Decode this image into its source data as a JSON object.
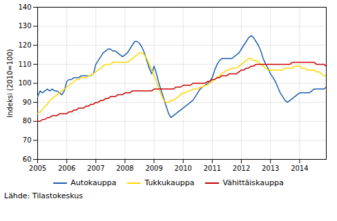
{
  "chart_data": {
    "type": "line",
    "ylabel": "Indeksi (2010=100)",
    "source": "Lähde: Tilastokeskus",
    "xlim": [
      2005.0,
      2014.917
    ],
    "xticks": [
      2005,
      2006,
      2007,
      2008,
      2009,
      2010,
      2011,
      2012,
      2013,
      2014
    ],
    "ylim": [
      60,
      140
    ],
    "yticks": [
      60,
      70,
      80,
      90,
      100,
      110,
      120,
      130,
      140
    ],
    "grid": true,
    "legend": "bottom",
    "x": [
      2005.0,
      2005.083,
      2005.167,
      2005.25,
      2005.333,
      2005.417,
      2005.5,
      2005.583,
      2005.667,
      2005.75,
      2005.833,
      2005.917,
      2006.0,
      2006.083,
      2006.167,
      2006.25,
      2006.333,
      2006.417,
      2006.5,
      2006.583,
      2006.667,
      2006.75,
      2006.833,
      2006.917,
      2007.0,
      2007.083,
      2007.167,
      2007.25,
      2007.333,
      2007.417,
      2007.5,
      2007.583,
      2007.667,
      2007.75,
      2007.833,
      2007.917,
      2008.0,
      2008.083,
      2008.167,
      2008.25,
      2008.333,
      2008.417,
      2008.5,
      2008.583,
      2008.667,
      2008.75,
      2008.833,
      2008.917,
      2009.0,
      2009.083,
      2009.167,
      2009.25,
      2009.333,
      2009.417,
      2009.5,
      2009.583,
      2009.667,
      2009.75,
      2009.833,
      2009.917,
      2010.0,
      2010.083,
      2010.167,
      2010.25,
      2010.333,
      2010.417,
      2010.5,
      2010.583,
      2010.667,
      2010.75,
      2010.833,
      2010.917,
      2011.0,
      2011.083,
      2011.167,
      2011.25,
      2011.333,
      2011.417,
      2011.5,
      2011.583,
      2011.667,
      2011.75,
      2011.833,
      2011.917,
      2012.0,
      2012.083,
      2012.167,
      2012.25,
      2012.333,
      2012.417,
      2012.5,
      2012.583,
      2012.667,
      2012.75,
      2012.833,
      2012.917,
      2013.0,
      2013.083,
      2013.167,
      2013.25,
      2013.333,
      2013.417,
      2013.5,
      2013.583,
      2013.667,
      2013.75,
      2013.833,
      2013.917,
      2014.0,
      2014.083,
      2014.167,
      2014.25,
      2014.333,
      2014.417,
      2014.5,
      2014.583,
      2014.667,
      2014.75,
      2014.833,
      2014.917
    ],
    "series": [
      {
        "name": "Autokauppa",
        "color": "#1F5FAD",
        "values": [
          93,
          96,
          95,
          96,
          97,
          96,
          97,
          96,
          96,
          95,
          94,
          96,
          101,
          102,
          102,
          103,
          103,
          103,
          104,
          104,
          104,
          104,
          104,
          105,
          110,
          112,
          114,
          116,
          117,
          118,
          118,
          117,
          117,
          116,
          115,
          114,
          115,
          116,
          118,
          120,
          122,
          122,
          121,
          119,
          116,
          112,
          108,
          105,
          109,
          105,
          100,
          96,
          92,
          88,
          84,
          82,
          83,
          84,
          85,
          86,
          87,
          88,
          89,
          90,
          91,
          93,
          95,
          97,
          98,
          99,
          100,
          101,
          103,
          107,
          110,
          112,
          113,
          113,
          113,
          113,
          113,
          114,
          115,
          116,
          118,
          120,
          122,
          124,
          125,
          124,
          122,
          120,
          117,
          113,
          110,
          108,
          105,
          103,
          101,
          98,
          95,
          93,
          91,
          90,
          91,
          92,
          93,
          94,
          95,
          95,
          95,
          95,
          95,
          96,
          97,
          97,
          97,
          97,
          97,
          98
        ]
      },
      {
        "name": "Tukkukauppa",
        "color": "#FFD700",
        "values": [
          84,
          85,
          86,
          88,
          89,
          91,
          92,
          93,
          94,
          95,
          96,
          97,
          98,
          99,
          100,
          101,
          102,
          102,
          103,
          103,
          103,
          104,
          104,
          105,
          106,
          107,
          108,
          109,
          110,
          110,
          110,
          111,
          111,
          111,
          111,
          111,
          111,
          111,
          112,
          113,
          114,
          115,
          116,
          116,
          115,
          113,
          110,
          107,
          104,
          101,
          97,
          94,
          91,
          90,
          90,
          91,
          91,
          92,
          93,
          94,
          95,
          95,
          96,
          96,
          97,
          97,
          97,
          98,
          98,
          99,
          99,
          100,
          101,
          102,
          103,
          104,
          105,
          106,
          107,
          107,
          108,
          108,
          108,
          109,
          110,
          111,
          112,
          113,
          113,
          112,
          112,
          111,
          110,
          109,
          108,
          107,
          107,
          107,
          107,
          107,
          107,
          107,
          108,
          108,
          108,
          108,
          109,
          109,
          109,
          108,
          108,
          107,
          107,
          107,
          107,
          106,
          106,
          105,
          104,
          104
        ]
      },
      {
        "name": "Vähittäiskauppa",
        "color": "#CC0000",
        "values": [
          80,
          80,
          81,
          81,
          82,
          82,
          83,
          83,
          83,
          84,
          84,
          84,
          84,
          85,
          85,
          86,
          86,
          87,
          87,
          87,
          88,
          88,
          89,
          89,
          90,
          90,
          91,
          91,
          92,
          92,
          93,
          93,
          93,
          94,
          94,
          94,
          95,
          95,
          95,
          96,
          96,
          96,
          96,
          96,
          96,
          96,
          96,
          96,
          97,
          97,
          97,
          97,
          97,
          97,
          97,
          97,
          97,
          98,
          98,
          98,
          99,
          99,
          99,
          99,
          100,
          100,
          100,
          100,
          100,
          100,
          101,
          101,
          102,
          102,
          103,
          103,
          104,
          104,
          104,
          105,
          105,
          105,
          105,
          106,
          107,
          107,
          108,
          108,
          109,
          109,
          110,
          110,
          110,
          110,
          110,
          110,
          110,
          110,
          110,
          110,
          110,
          110,
          110,
          110,
          110,
          111,
          111,
          111,
          111,
          111,
          111,
          111,
          111,
          111,
          111,
          110,
          110,
          110,
          110,
          109
        ]
      }
    ]
  }
}
